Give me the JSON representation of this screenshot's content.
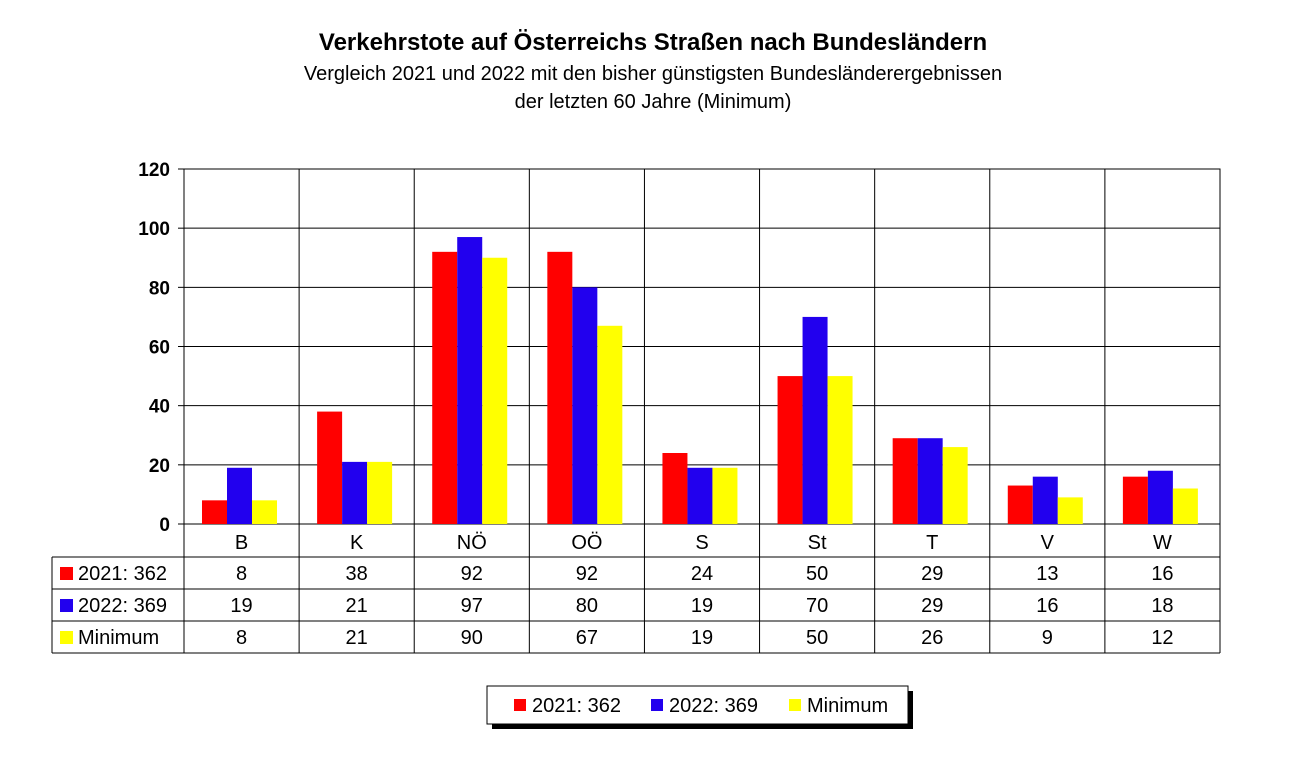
{
  "title": "Verkehrstote auf Österreichs Straßen nach Bundesländern",
  "subtitle_line1": "Vergleich 2021 und 2022 mit den bisher günstigsten Bundesländerergebnissen",
  "subtitle_line2": "der letzten 60 Jahre (Minimum)",
  "chart_data": {
    "type": "bar",
    "title": "Verkehrstote auf Österreichs Straßen nach Bundesländern",
    "categories": [
      "B",
      "K",
      "NÖ",
      "OÖ",
      "S",
      "St",
      "T",
      "V",
      "W"
    ],
    "series": [
      {
        "name": "2021: 362",
        "color": "#ff0000",
        "values": [
          8,
          38,
          92,
          92,
          24,
          50,
          29,
          13,
          16
        ]
      },
      {
        "name": "2022: 369",
        "color": "#2200ee",
        "values": [
          19,
          21,
          97,
          80,
          19,
          70,
          29,
          16,
          18
        ]
      },
      {
        "name": "Minimum",
        "color": "#ffff00",
        "values": [
          8,
          21,
          90,
          67,
          19,
          50,
          26,
          9,
          12
        ]
      }
    ],
    "ylim": [
      0,
      120
    ],
    "yticks": [
      0,
      20,
      40,
      60,
      80,
      100,
      120
    ],
    "grid": true,
    "xlabel": "",
    "ylabel": "",
    "data_table": true,
    "legend_position": "bottom-center"
  }
}
